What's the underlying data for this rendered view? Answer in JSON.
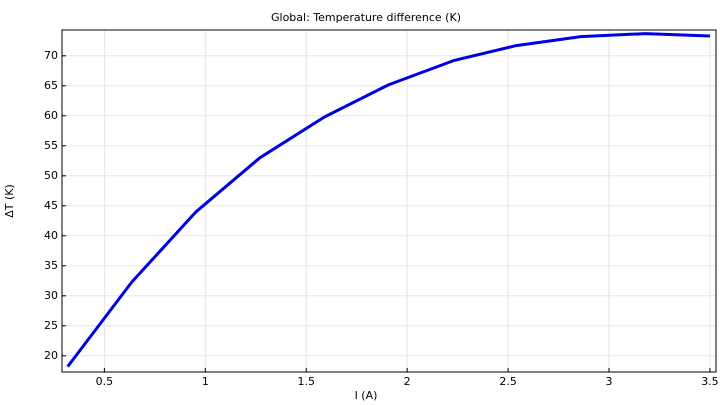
{
  "chart_data": {
    "type": "line",
    "title": "Global: Temperature difference (K)",
    "x_label": "I (A)",
    "y_label": "ΔT (K)",
    "x": [
      0.318,
      0.636,
      0.954,
      1.27,
      1.59,
      1.91,
      2.23,
      2.54,
      2.86,
      3.18,
      3.5
    ],
    "series": [
      {
        "color": "#0000e6",
        "values": [
          18.2,
          32.3,
          44.0,
          53.0,
          59.8,
          65.2,
          69.2,
          71.7,
          73.2,
          73.7,
          73.3
        ]
      }
    ],
    "xlim": [
      0.29,
      3.53
    ],
    "ylim": [
      17.3,
      74.3
    ],
    "xticks": [
      0.5,
      1,
      1.5,
      2,
      2.5,
      3,
      3.5
    ],
    "yticks": [
      20,
      25,
      30,
      35,
      40,
      45,
      50,
      55,
      60,
      65,
      70
    ],
    "grid": true
  }
}
